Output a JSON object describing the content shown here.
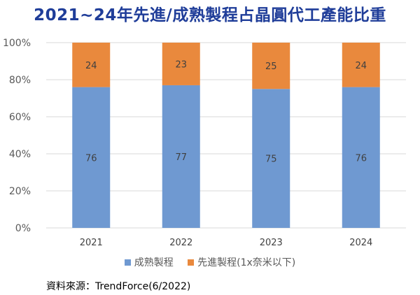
{
  "chart_data": {
    "type": "bar",
    "stacked": true,
    "title": "2021~24年先進/成熟製程占晶圓代工產能比重",
    "categories": [
      "2021",
      "2022",
      "2023",
      "2024"
    ],
    "series": [
      {
        "name": "成熟製程",
        "values": [
          76,
          77,
          75,
          76
        ],
        "color": "#6f99d1"
      },
      {
        "name": "先進製程(1x奈米以下)",
        "values": [
          24,
          23,
          25,
          24
        ],
        "color": "#e9893d"
      }
    ],
    "ylim": [
      0,
      100
    ],
    "yticks": [
      "0%",
      "20%",
      "40%",
      "60%",
      "80%",
      "100%"
    ],
    "xlabel": "",
    "ylabel": "",
    "grid": true,
    "legend": "bottom"
  },
  "source": "資料來源：TrendForce(6/2022)",
  "colors": {
    "title": "#1f3d99"
  }
}
